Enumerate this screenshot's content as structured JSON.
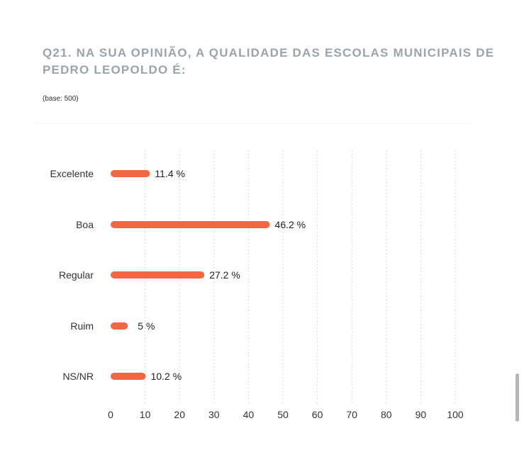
{
  "header": {
    "title": "Q21. NA SUA OPINIÃO, A QUALIDADE DAS ESCOLAS MUNICIPAIS DE PEDRO LEOPOLDO É:",
    "base": "(base: 500)"
  },
  "chart_data": {
    "type": "bar",
    "orientation": "horizontal",
    "title": "Q21. NA SUA OPINIÃO, A QUALIDADE DAS ESCOLAS MUNICIPAIS DE PEDRO LEOPOLDO É:",
    "categories": [
      "Excelente",
      "Boa",
      "Regular",
      "Ruim",
      "NS/NR"
    ],
    "values": [
      11.4,
      46.2,
      27.2,
      5,
      10.2
    ],
    "value_labels": [
      "11.4 %",
      "46.2 %",
      "27.2 %",
      "5 %",
      "10.2 %"
    ],
    "xlim": [
      0,
      100
    ],
    "xticks": [
      "0",
      "10",
      "20",
      "30",
      "40",
      "50",
      "60",
      "70",
      "80",
      "90",
      "100"
    ],
    "grid": "vertical dashed",
    "bar_color": "#f26642"
  }
}
